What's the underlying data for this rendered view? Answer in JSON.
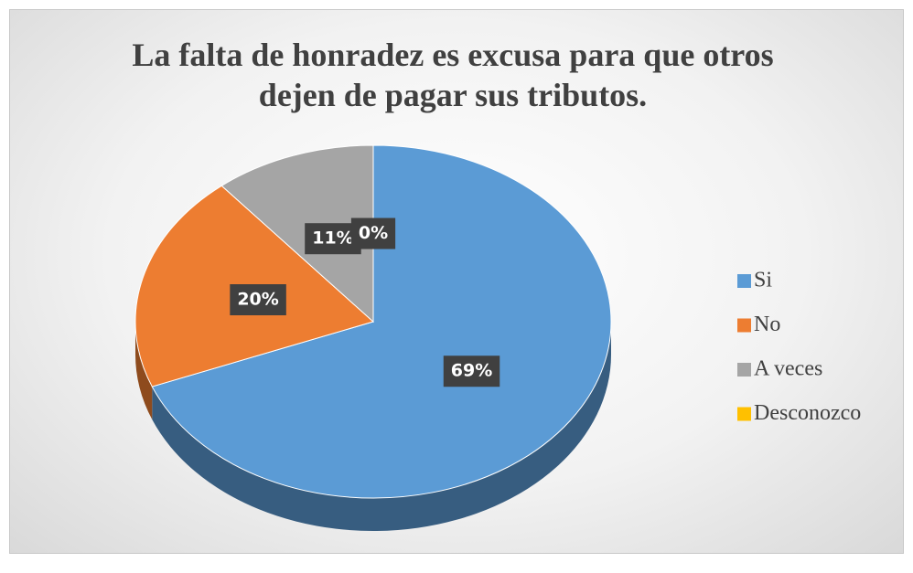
{
  "chart_data": {
    "type": "pie",
    "title": "La falta de honradez es excusa para que otros dejen de pagar sus tributos.",
    "categories": [
      "Si",
      "No",
      "A veces",
      "Desconozco"
    ],
    "values": [
      69,
      20,
      11,
      0
    ],
    "value_labels": [
      "69%",
      "20%",
      "11%",
      "0%"
    ],
    "colors": [
      "#5b9bd5",
      "#ed7d31",
      "#a5a5a5",
      "#ffc000"
    ],
    "legend": "right"
  }
}
